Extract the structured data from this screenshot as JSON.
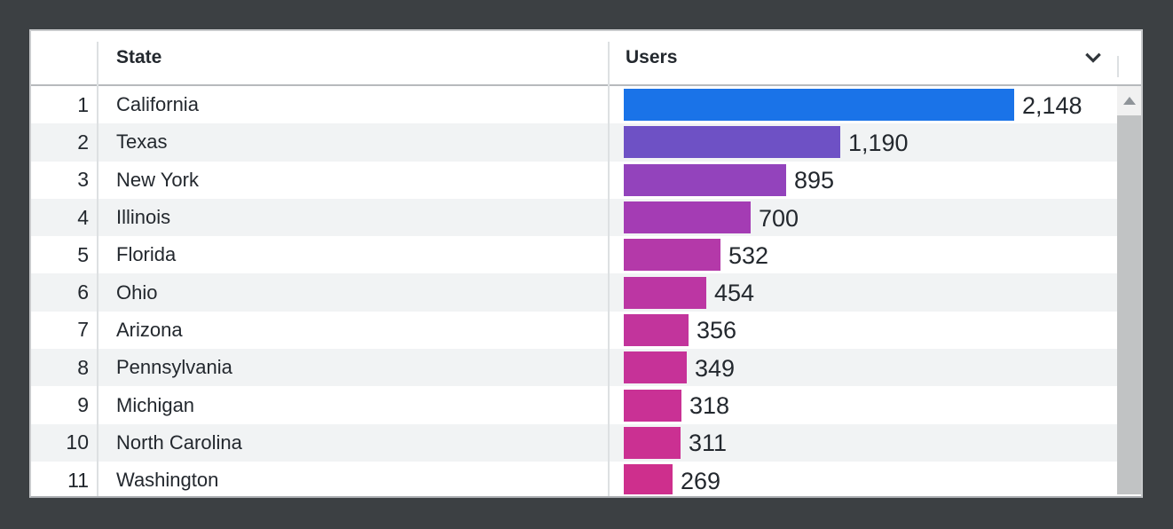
{
  "table": {
    "header": {
      "rank_label": "",
      "state_label": "State",
      "users_label": "Users"
    },
    "rows": [
      {
        "rank": "1",
        "state": "California",
        "users_label": "2,148",
        "users": 2148,
        "bar_color": "#1a73e8"
      },
      {
        "rank": "2",
        "state": "Texas",
        "users_label": "1,190",
        "users": 1190,
        "bar_color": "#6e51c5"
      },
      {
        "rank": "3",
        "state": "New York",
        "users_label": "895",
        "users": 895,
        "bar_color": "#9343bc"
      },
      {
        "rank": "4",
        "state": "Illinois",
        "users_label": "700",
        "users": 700,
        "bar_color": "#a43cb4"
      },
      {
        "rank": "5",
        "state": "Florida",
        "users_label": "532",
        "users": 532,
        "bar_color": "#b439a9"
      },
      {
        "rank": "6",
        "state": "Ohio",
        "users_label": "454",
        "users": 454,
        "bar_color": "#bc36a3"
      },
      {
        "rank": "7",
        "state": "Arizona",
        "users_label": "356",
        "users": 356,
        "bar_color": "#c2349c"
      },
      {
        "rank": "8",
        "state": "Pennsylvania",
        "users_label": "349",
        "users": 349,
        "bar_color": "#c63298"
      },
      {
        "rank": "9",
        "state": "Michigan",
        "users_label": "318",
        "users": 318,
        "bar_color": "#c93195"
      },
      {
        "rank": "10",
        "state": "North Carolina",
        "users_label": "311",
        "users": 311,
        "bar_color": "#cb3092"
      },
      {
        "rank": "11",
        "state": "Washington",
        "users_label": "269",
        "users": 269,
        "bar_color": "#ce2f8d"
      }
    ],
    "icons": {
      "sort": "chevron-down-icon",
      "scroll_up": "triangle-up-icon"
    }
  },
  "colors": {
    "page_background": "#3c4043",
    "card_background": "#ffffff",
    "row_stripe": "#f1f3f4",
    "text": "#23282e",
    "divider": "#dde0e2",
    "header_border": "#b7babd",
    "scrollbar_thumb": "#c1c3c4",
    "bar_max_color": "#1a73e8",
    "bar_min_color": "#ce2f8d"
  },
  "chart_data": {
    "type": "bar",
    "orientation": "horizontal",
    "title": "",
    "xlabel": "Users",
    "ylabel": "State",
    "categories": [
      "California",
      "Texas",
      "New York",
      "Illinois",
      "Florida",
      "Ohio",
      "Arizona",
      "Pennsylvania",
      "Michigan",
      "North Carolina",
      "Washington"
    ],
    "values": [
      2148,
      1190,
      895,
      700,
      532,
      454,
      356,
      349,
      318,
      311,
      269
    ],
    "value_labels": [
      "2,148",
      "1,190",
      "895",
      "700",
      "532",
      "454",
      "356",
      "349",
      "318",
      "311",
      "269"
    ],
    "xlim": [
      0,
      2148
    ],
    "grid": false,
    "legend": false,
    "bar_colors": [
      "#1a73e8",
      "#6e51c5",
      "#9343bc",
      "#a43cb4",
      "#b439a9",
      "#bc36a3",
      "#c2349c",
      "#c63298",
      "#c93195",
      "#cb3092",
      "#ce2f8d"
    ]
  }
}
